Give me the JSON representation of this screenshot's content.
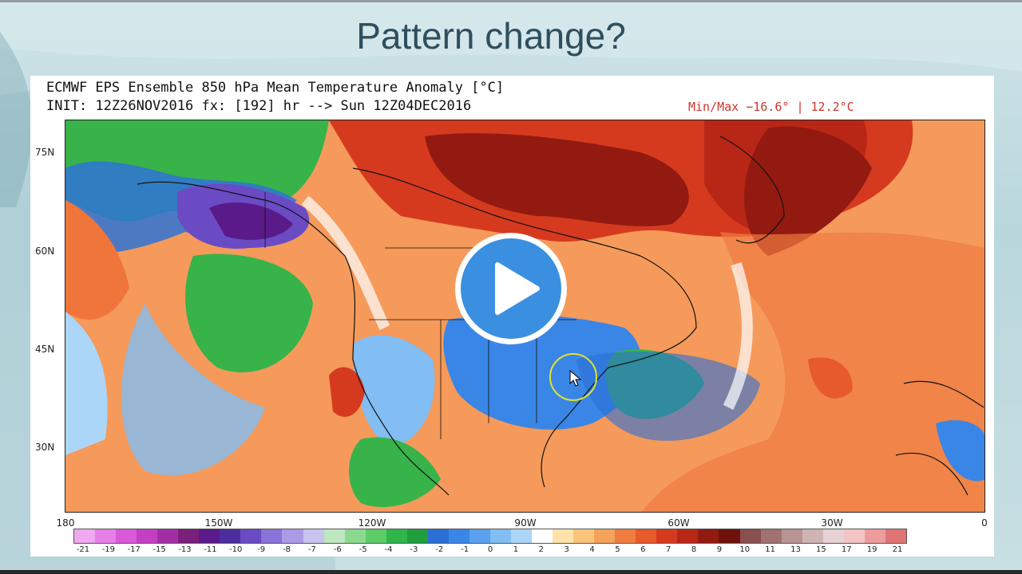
{
  "slide": {
    "title": "Pattern change?"
  },
  "map": {
    "header_line1": "ECMWF EPS Ensemble 850 hPa Mean Temperature Anomaly [°C]",
    "header_line2": "INIT: 12Z26NOV2016 fx: [192] hr --> Sun 12Z04DEC2016",
    "minmax": "Min/Max −16.6° | 12.2°C",
    "lat_labels": [
      "75N",
      "60N",
      "45N",
      "30N"
    ],
    "lon_labels": [
      "180",
      "150W",
      "120W",
      "90W",
      "60W",
      "30W",
      "0"
    ]
  },
  "colorbar": {
    "ticks": [
      "-21",
      "-19",
      "-17",
      "-15",
      "-13",
      "-11",
      "-10",
      "-9",
      "-8",
      "-7",
      "-6",
      "-5",
      "-4",
      "-3",
      "-2",
      "-1",
      "0",
      "1",
      "2",
      "3",
      "4",
      "5",
      "6",
      "7",
      "8",
      "9",
      "10",
      "11",
      "13",
      "15",
      "17",
      "19",
      "21"
    ],
    "colors": [
      "#f0a8f0",
      "#e57fe5",
      "#d85ad8",
      "#c43fc4",
      "#a32ea3",
      "#7a1f7a",
      "#5a1a8a",
      "#4b2d9e",
      "#6a4bc4",
      "#8a73d8",
      "#a99be6",
      "#c9c3f0",
      "#bde8c0",
      "#8ad98f",
      "#5ccb68",
      "#2fb64a",
      "#1f9e3c",
      "#2a6fd6",
      "#3a86e6",
      "#5aa0ee",
      "#82bdf3",
      "#acd6f7",
      "#ffffff",
      "#fde3a8",
      "#f9c57a",
      "#f5a25b",
      "#ef7d3f",
      "#e65a2c",
      "#d53a1f",
      "#b82716",
      "#931a10",
      "#6e120b",
      "#8a4f4f",
      "#a07272",
      "#b89494",
      "#cfb4b4",
      "#e6d2d2",
      "#f3c4c4",
      "#ec9c9c",
      "#e07474"
    ]
  },
  "overlays": {
    "play_icon": "play-icon",
    "cursor_icon": "move-cursor-icon",
    "accent_play": "#3b8fe0",
    "ring_color": "#dfe22a"
  }
}
